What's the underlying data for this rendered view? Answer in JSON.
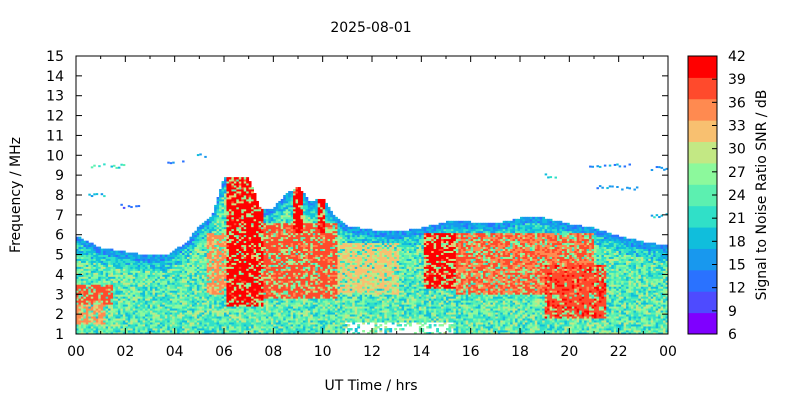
{
  "chart_data": {
    "type": "heatmap",
    "title": "2025-08-01",
    "xlabel": "UT Time / hrs",
    "ylabel": "Frequency / MHz",
    "colorbar_label": "Signal to Noise Ratio SNR / dB",
    "xlim": [
      0,
      24
    ],
    "ylim": [
      1,
      15
    ],
    "x_ticks": [
      "00",
      "02",
      "04",
      "06",
      "08",
      "10",
      "12",
      "14",
      "16",
      "18",
      "20",
      "22",
      "00"
    ],
    "y_ticks": [
      "1",
      "2",
      "3",
      "4",
      "5",
      "6",
      "7",
      "8",
      "9",
      "10",
      "11",
      "12",
      "13",
      "14",
      "15"
    ],
    "colorbar_ticks": [
      "6",
      "9",
      "12",
      "15",
      "18",
      "21",
      "24",
      "27",
      "30",
      "33",
      "36",
      "39",
      "42"
    ],
    "colorbar_range": [
      6,
      42
    ],
    "colorbar_colors": [
      "#7f00ff",
      "#4e4bff",
      "#2a72ff",
      "#1898ee",
      "#10bedc",
      "#30e0c8",
      "#5cf0b0",
      "#8cf99c",
      "#c3e884",
      "#f8c070",
      "#ff8a50",
      "#ff4a2c",
      "#ff0000"
    ],
    "grid": false,
    "legend": "colorbar right",
    "upper_extent_mhz": [
      [
        0.0,
        5.9
      ],
      [
        0.5,
        5.6
      ],
      [
        1.0,
        5.3
      ],
      [
        2.0,
        5.1
      ],
      [
        3.0,
        4.9
      ],
      [
        3.8,
        5.0
      ],
      [
        4.5,
        5.6
      ],
      [
        5.0,
        6.4
      ],
      [
        5.5,
        6.9
      ],
      [
        6.0,
        8.8
      ],
      [
        7.0,
        8.8
      ],
      [
        7.5,
        7.2
      ],
      [
        8.0,
        7.3
      ],
      [
        8.5,
        8.0
      ],
      [
        9.0,
        8.4
      ],
      [
        9.5,
        7.6
      ],
      [
        10.0,
        7.8
      ],
      [
        10.5,
        6.9
      ],
      [
        11.0,
        6.4
      ],
      [
        12.0,
        6.2
      ],
      [
        13.0,
        6.1
      ],
      [
        14.0,
        6.3
      ],
      [
        15.0,
        6.6
      ],
      [
        16.0,
        6.6
      ],
      [
        17.0,
        6.5
      ],
      [
        18.0,
        6.8
      ],
      [
        18.5,
        6.9
      ],
      [
        19.0,
        6.8
      ],
      [
        20.0,
        6.5
      ],
      [
        21.0,
        6.3
      ],
      [
        22.0,
        5.9
      ],
      [
        23.0,
        5.6
      ],
      [
        24.0,
        5.4
      ]
    ],
    "intense_regions": [
      {
        "t0": 6.0,
        "t1": 7.5,
        "f0": 2.4,
        "f1": 8.9,
        "snr": 42
      },
      {
        "t0": 5.2,
        "t1": 6.0,
        "f0": 3.0,
        "f1": 6.0,
        "snr": 36
      },
      {
        "t0": 7.5,
        "t1": 10.5,
        "f0": 2.8,
        "f1": 6.5,
        "snr": 39
      },
      {
        "t0": 8.7,
        "t1": 9.1,
        "f0": 6.0,
        "f1": 8.7,
        "snr": 42
      },
      {
        "t0": 9.7,
        "t1": 10.0,
        "f0": 6.0,
        "f1": 8.6,
        "snr": 42
      },
      {
        "t0": 10.5,
        "t1": 13.0,
        "f0": 3.0,
        "f1": 5.5,
        "snr": 33
      },
      {
        "t0": 14.0,
        "t1": 15.3,
        "f0": 3.3,
        "f1": 6.0,
        "snr": 42
      },
      {
        "t0": 15.3,
        "t1": 21.0,
        "f0": 3.0,
        "f1": 6.0,
        "snr": 38
      },
      {
        "t0": 19.0,
        "t1": 21.5,
        "f0": 1.8,
        "f1": 4.5,
        "snr": 40
      },
      {
        "t0": 0.0,
        "t1": 1.5,
        "f0": 2.5,
        "f1": 3.5,
        "snr": 39
      },
      {
        "t0": 0.0,
        "t1": 1.2,
        "f0": 1.5,
        "f1": 2.5,
        "snr": 36
      }
    ],
    "sporadic_e_traces": [
      {
        "t0": 0.5,
        "t1": 2.0,
        "f": 9.4,
        "snr": 22
      },
      {
        "t0": 0.3,
        "t1": 1.3,
        "f": 7.9,
        "snr": 18
      },
      {
        "t0": 1.8,
        "t1": 2.6,
        "f": 7.4,
        "snr": 14
      },
      {
        "t0": 3.6,
        "t1": 4.3,
        "f": 9.6,
        "snr": 14
      },
      {
        "t0": 4.9,
        "t1": 5.4,
        "f": 9.9,
        "snr": 18
      },
      {
        "t0": 19.0,
        "t1": 19.5,
        "f": 8.9,
        "snr": 20
      },
      {
        "t0": 20.8,
        "t1": 22.5,
        "f": 9.4,
        "snr": 16
      },
      {
        "t0": 21.0,
        "t1": 22.8,
        "f": 8.3,
        "snr": 15
      },
      {
        "t0": 23.3,
        "t1": 24.0,
        "f": 9.3,
        "snr": 16
      },
      {
        "t0": 23.3,
        "t1": 24.0,
        "f": 6.9,
        "snr": 18
      }
    ]
  }
}
